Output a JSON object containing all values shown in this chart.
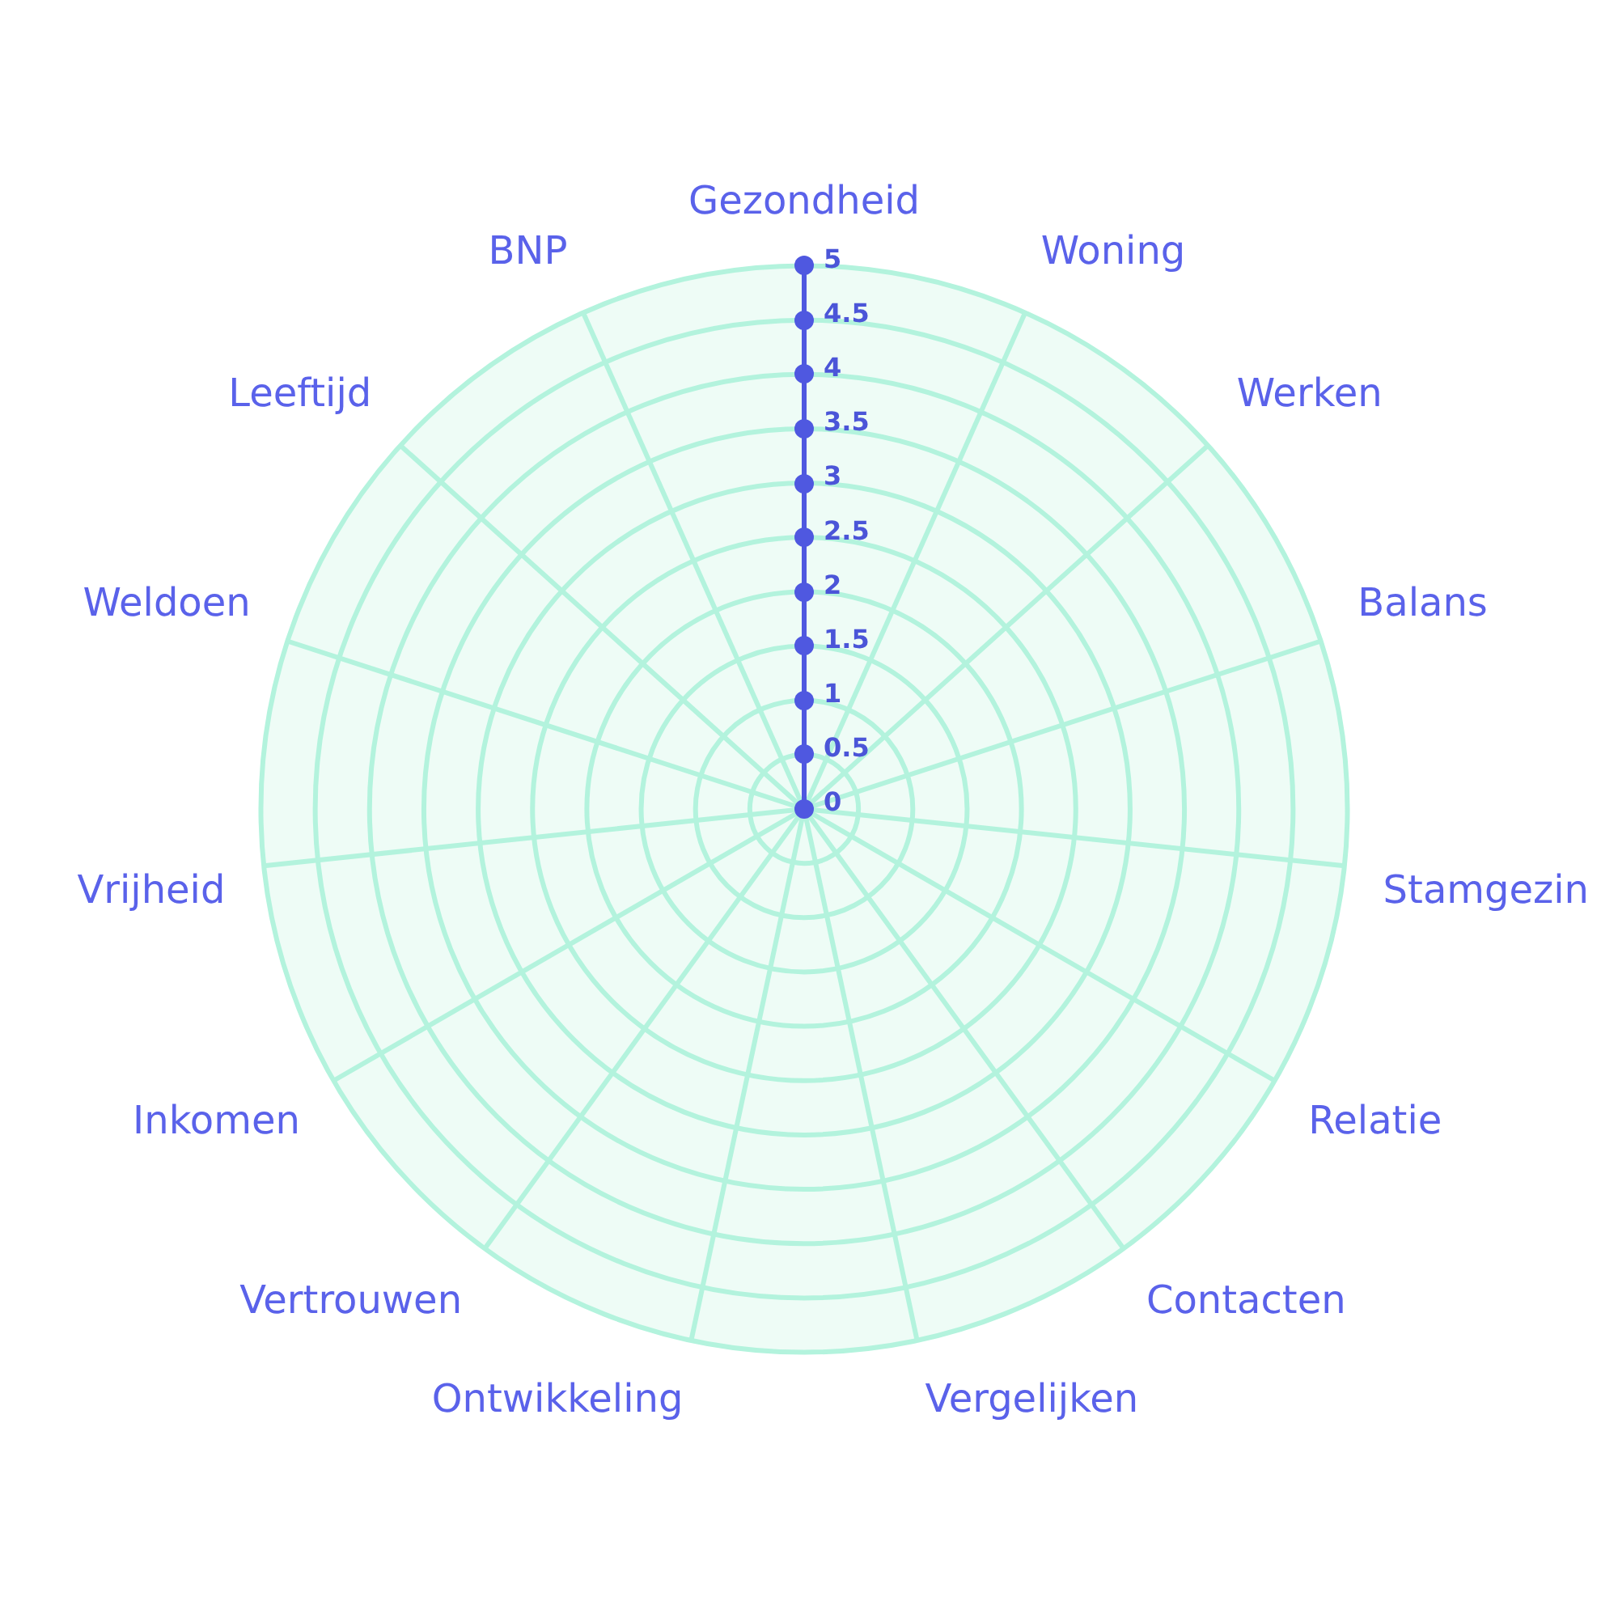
{
  "chart_data": {
    "type": "radar",
    "categories": [
      "Gezondheid",
      "Woning",
      "Werken",
      "Balans",
      "Stamgezin",
      "Relatie",
      "Contacten",
      "Vergelijken",
      "Ontwikkeling",
      "Vertrouwen",
      "Inkomen",
      "Vrijheid",
      "Weldoen",
      "Leeftijd",
      "BNP"
    ],
    "ylim": [
      0,
      5
    ],
    "yticks": [
      0,
      0.5,
      1,
      1.5,
      2,
      2.5,
      3,
      3.5,
      4,
      4.5,
      5
    ],
    "grid": true
  }
}
